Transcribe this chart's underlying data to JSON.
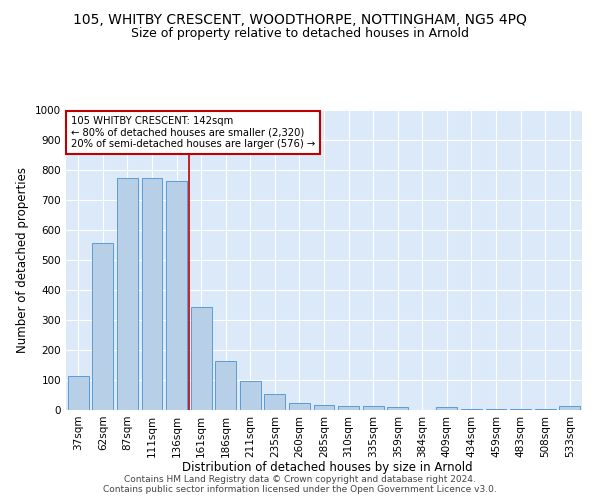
{
  "title": "105, WHITBY CRESCENT, WOODTHORPE, NOTTINGHAM, NG5 4PQ",
  "subtitle": "Size of property relative to detached houses in Arnold",
  "xlabel": "Distribution of detached houses by size in Arnold",
  "ylabel": "Number of detached properties",
  "categories": [
    "37sqm",
    "62sqm",
    "87sqm",
    "111sqm",
    "136sqm",
    "161sqm",
    "186sqm",
    "211sqm",
    "235sqm",
    "260sqm",
    "285sqm",
    "310sqm",
    "335sqm",
    "359sqm",
    "384sqm",
    "409sqm",
    "434sqm",
    "459sqm",
    "483sqm",
    "508sqm",
    "533sqm"
  ],
  "values": [
    112,
    558,
    775,
    775,
    762,
    345,
    163,
    98,
    55,
    22,
    18,
    12,
    12,
    10,
    0,
    10,
    2,
    2,
    2,
    2,
    12
  ],
  "bar_color": "#b8cfe8",
  "bar_edge_color": "#5b9bd5",
  "vline_x": 4.5,
  "vline_color": "#c00000",
  "annotation_text": "105 WHITBY CRESCENT: 142sqm\n← 80% of detached houses are smaller (2,320)\n20% of semi-detached houses are larger (576) →",
  "annotation_box_color": "#ffffff",
  "annotation_box_edge": "#c00000",
  "ylim": [
    0,
    1000
  ],
  "yticks": [
    0,
    100,
    200,
    300,
    400,
    500,
    600,
    700,
    800,
    900,
    1000
  ],
  "bg_color": "#dce9f8",
  "grid_color": "#ffffff",
  "footer": "Contains HM Land Registry data © Crown copyright and database right 2024.\nContains public sector information licensed under the Open Government Licence v3.0.",
  "title_fontsize": 10,
  "subtitle_fontsize": 9,
  "axis_label_fontsize": 8.5,
  "tick_fontsize": 7.5,
  "footer_fontsize": 6.5
}
